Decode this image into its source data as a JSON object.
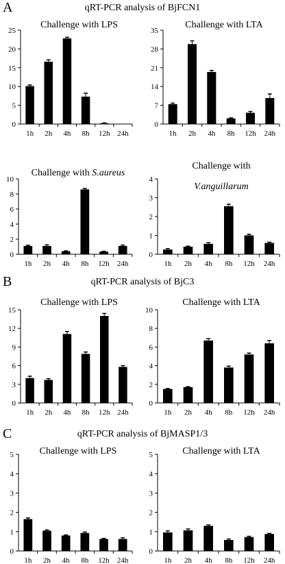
{
  "panels": [
    {
      "letter": "A",
      "title": "qRT-PCR analysis of BjFCN1"
    },
    {
      "letter": "B",
      "title": "qRT-PCR analysis of BjC3"
    },
    {
      "letter": "C",
      "title": "qRT-PCR analysis of BjMASP1/3"
    }
  ],
  "colors": {
    "bar": "#000000",
    "axis": "#000000"
  },
  "chart_data": [
    {
      "type": "bar",
      "panel": "A",
      "title": "Challenge with LPS",
      "title_parts": [
        {
          "text": "Challenge with LPS",
          "italic": false
        }
      ],
      "categories": [
        "1h",
        "2h",
        "4h",
        "8h",
        "12h",
        "24h"
      ],
      "values": [
        10.1,
        16.6,
        22.8,
        7.3,
        0.2,
        0
      ],
      "errors": [
        0.3,
        0.5,
        0.3,
        0.9,
        0.1,
        0
      ],
      "ylim": [
        0,
        25
      ],
      "yticks": [
        "0",
        "5",
        "10",
        "15",
        "20",
        "25"
      ],
      "grid": false
    },
    {
      "type": "bar",
      "panel": "A",
      "title": "Challenge with LTA",
      "title_parts": [
        {
          "text": "Challenge with LTA",
          "italic": false
        }
      ],
      "categories": [
        "1h",
        "2h",
        "4h",
        "8h",
        "12h",
        "24h"
      ],
      "values": [
        7.4,
        29.8,
        19.4,
        2.1,
        4.2,
        9.7
      ],
      "errors": [
        0.4,
        1.2,
        0.6,
        0.2,
        0.5,
        1.5
      ],
      "ylim": [
        0,
        35
      ],
      "yticks": [
        "0",
        "7",
        "14",
        "21",
        "28",
        "35"
      ],
      "grid": false
    },
    {
      "type": "bar",
      "panel": "A",
      "title": "Challenge with S.aureus",
      "title_parts": [
        {
          "text": "Challenge with ",
          "italic": false
        },
        {
          "text": "S.aureus",
          "italic": true
        }
      ],
      "categories": [
        "1h",
        "2h",
        "4h",
        "8h",
        "12h",
        "24h"
      ],
      "values": [
        1.1,
        1.1,
        0.4,
        8.6,
        0.35,
        1.1
      ],
      "errors": [
        0.1,
        0.15,
        0.05,
        0.12,
        0.05,
        0.12
      ],
      "ylim": [
        0,
        10
      ],
      "yticks": [
        "0",
        "2",
        "4",
        "6",
        "8",
        "10"
      ],
      "grid": false
    },
    {
      "type": "bar",
      "panel": "A",
      "title": "Challenge with V.anguillarum",
      "title_parts": [
        {
          "text": "Challenge with",
          "italic": false
        },
        {
          "text": "V.anguillarum",
          "italic": true
        }
      ],
      "categories": [
        "1h",
        "2h",
        "4h",
        "8h",
        "12h",
        "24h"
      ],
      "values": [
        0.25,
        0.4,
        0.55,
        2.55,
        1.0,
        0.6
      ],
      "errors": [
        0.05,
        0.03,
        0.06,
        0.1,
        0.06,
        0.04
      ],
      "ylim": [
        0,
        4
      ],
      "yticks": [
        "0",
        "1",
        "2",
        "3",
        "4"
      ],
      "grid": false
    },
    {
      "type": "bar",
      "panel": "B",
      "title": "Challenge with LPS",
      "title_parts": [
        {
          "text": "Challenge with LPS",
          "italic": false
        }
      ],
      "categories": [
        "1h",
        "2h",
        "4h",
        "8h",
        "12h",
        "24h"
      ],
      "values": [
        4.0,
        3.7,
        11.1,
        7.9,
        14.0,
        5.8
      ],
      "errors": [
        0.3,
        0.2,
        0.4,
        0.3,
        0.4,
        0.2
      ],
      "ylim": [
        0,
        15
      ],
      "yticks": [
        "0",
        "3",
        "6",
        "9",
        "12",
        "15"
      ],
      "grid": false
    },
    {
      "type": "bar",
      "panel": "B",
      "title": "Challenge with LTA",
      "title_parts": [
        {
          "text": "Challenge with LTA",
          "italic": false
        }
      ],
      "categories": [
        "1h",
        "2h",
        "4h",
        "8h",
        "12h",
        "24h"
      ],
      "values": [
        1.5,
        1.7,
        6.7,
        3.8,
        5.2,
        6.4
      ],
      "errors": [
        0.05,
        0.05,
        0.2,
        0.15,
        0.15,
        0.3
      ],
      "ylim": [
        0,
        10
      ],
      "yticks": [
        "0",
        "2",
        "4",
        "6",
        "8",
        "10"
      ],
      "grid": false
    },
    {
      "type": "bar",
      "panel": "C",
      "title": "Challenge with LPS",
      "title_parts": [
        {
          "text": "Challenge with LPS",
          "italic": false
        }
      ],
      "categories": [
        "1h",
        "2h",
        "4h",
        "8h",
        "12h",
        "24h"
      ],
      "values": [
        1.65,
        1.05,
        0.8,
        0.93,
        0.62,
        0.62
      ],
      "errors": [
        0.06,
        0.04,
        0.03,
        0.05,
        0.03,
        0.06
      ],
      "ylim": [
        0,
        5
      ],
      "yticks": [
        "0",
        "1",
        "2",
        "3",
        "4",
        "5"
      ],
      "grid": false
    },
    {
      "type": "bar",
      "panel": "C",
      "title": "Challenge with LTA",
      "title_parts": [
        {
          "text": "Challenge with LTA",
          "italic": false
        }
      ],
      "categories": [
        "1h",
        "2h",
        "4h",
        "8h",
        "12h",
        "24h"
      ],
      "values": [
        0.96,
        1.07,
        1.3,
        0.57,
        0.72,
        0.88
      ],
      "errors": [
        0.08,
        0.07,
        0.05,
        0.05,
        0.04,
        0.03
      ],
      "ylim": [
        0,
        5
      ],
      "yticks": [
        "0",
        "1",
        "2",
        "3",
        "4",
        "5"
      ],
      "grid": false
    }
  ]
}
